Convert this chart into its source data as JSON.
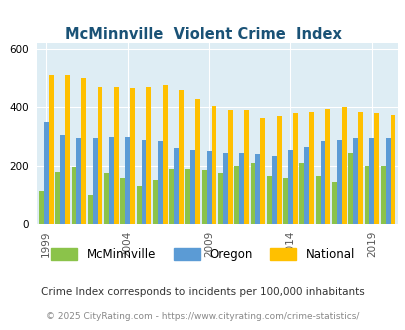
{
  "title": "McMinnville  Violent Crime  Index",
  "years": [
    1999,
    2000,
    2001,
    2002,
    2003,
    2004,
    2005,
    2006,
    2007,
    2008,
    2009,
    2010,
    2011,
    2012,
    2013,
    2014,
    2015,
    2016,
    2017,
    2018,
    2019,
    2020
  ],
  "mcminnville": [
    115,
    180,
    195,
    100,
    175,
    160,
    130,
    150,
    190,
    190,
    185,
    175,
    200,
    210,
    165,
    160,
    210,
    165,
    145,
    245,
    200,
    200
  ],
  "oregon": [
    350,
    305,
    295,
    295,
    300,
    300,
    290,
    285,
    260,
    255,
    250,
    245,
    245,
    240,
    235,
    255,
    265,
    285,
    290,
    295,
    295,
    295
  ],
  "national": [
    510,
    510,
    500,
    470,
    470,
    465,
    470,
    475,
    460,
    430,
    405,
    390,
    390,
    365,
    370,
    380,
    385,
    395,
    400,
    385,
    380,
    375
  ],
  "color_mcminnville": "#8bc34a",
  "color_oregon": "#5b9bd5",
  "color_national": "#ffc000",
  "bg_color": "#deedf4",
  "ylabel_ticks": [
    0,
    200,
    400,
    600
  ],
  "xticks": [
    1999,
    2004,
    2009,
    2014,
    2019
  ],
  "ylim": [
    0,
    620
  ],
  "subtitle": "Crime Index corresponds to incidents per 100,000 inhabitants",
  "footer": "© 2025 CityRating.com - https://www.cityrating.com/crime-statistics/"
}
